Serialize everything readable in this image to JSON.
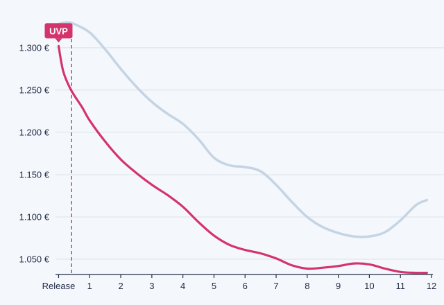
{
  "chart_data": {
    "type": "line",
    "title": "",
    "xlabel": "",
    "ylabel": "",
    "x_ticks": [
      {
        "x": 0,
        "label": "Release"
      },
      {
        "x": 1,
        "label": "1"
      },
      {
        "x": 2,
        "label": "2"
      },
      {
        "x": 3,
        "label": "3"
      },
      {
        "x": 4,
        "label": "4"
      },
      {
        "x": 5,
        "label": "5"
      },
      {
        "x": 6,
        "label": "6"
      },
      {
        "x": 7,
        "label": "7"
      },
      {
        "x": 8,
        "label": "8"
      },
      {
        "x": 9,
        "label": "9"
      },
      {
        "x": 10,
        "label": "10"
      },
      {
        "x": 11,
        "label": "11"
      },
      {
        "x": 12,
        "label": "12"
      }
    ],
    "y_ticks": [
      {
        "y": 1050,
        "label": "1.050 €"
      },
      {
        "y": 1100,
        "label": "1.100 €"
      },
      {
        "y": 1150,
        "label": "1.150 €"
      },
      {
        "y": 1200,
        "label": "1.200 €"
      },
      {
        "y": 1250,
        "label": "1.250 €"
      },
      {
        "y": 1300,
        "label": "1.300 €"
      }
    ],
    "xlim": [
      -0.1,
      12
    ],
    "ylim": [
      1032,
      1340
    ],
    "grid": true,
    "legend": false,
    "series": [
      {
        "color": "#c5d4e4",
        "points": [
          [
            0,
            1328
          ],
          [
            0.25,
            1330
          ],
          [
            0.5,
            1328
          ],
          [
            1,
            1318
          ],
          [
            1.5,
            1298
          ],
          [
            2,
            1275
          ],
          [
            2.5,
            1254
          ],
          [
            3,
            1236
          ],
          [
            3.5,
            1222
          ],
          [
            4,
            1210
          ],
          [
            4.5,
            1192
          ],
          [
            5,
            1170
          ],
          [
            5.5,
            1161
          ],
          [
            6,
            1159
          ],
          [
            6.5,
            1154
          ],
          [
            7,
            1138
          ],
          [
            7.5,
            1118
          ],
          [
            8,
            1100
          ],
          [
            8.5,
            1088
          ],
          [
            9,
            1081
          ],
          [
            9.5,
            1077
          ],
          [
            10,
            1077
          ],
          [
            10.5,
            1082
          ],
          [
            11,
            1096
          ],
          [
            11.5,
            1114
          ],
          [
            11.85,
            1120
          ]
        ]
      },
      {
        "color": "#d4336c",
        "points": [
          [
            0,
            1302
          ],
          [
            0.15,
            1272
          ],
          [
            0.4,
            1250
          ],
          [
            0.75,
            1230
          ],
          [
            1,
            1214
          ],
          [
            1.5,
            1189
          ],
          [
            2,
            1168
          ],
          [
            2.5,
            1152
          ],
          [
            3,
            1138
          ],
          [
            3.5,
            1126
          ],
          [
            4,
            1112
          ],
          [
            4.5,
            1094
          ],
          [
            5,
            1078
          ],
          [
            5.5,
            1067
          ],
          [
            6,
            1061
          ],
          [
            6.5,
            1057
          ],
          [
            7,
            1051
          ],
          [
            7.5,
            1043
          ],
          [
            8,
            1039
          ],
          [
            8.5,
            1040
          ],
          [
            9,
            1042
          ],
          [
            9.5,
            1045
          ],
          [
            10,
            1044
          ],
          [
            10.5,
            1039
          ],
          [
            11,
            1035
          ],
          [
            11.5,
            1034
          ],
          [
            11.85,
            1034
          ]
        ]
      }
    ],
    "reference_line": {
      "x": 0.42,
      "color": "#d4336c",
      "style": "dashed"
    },
    "annotation": {
      "text": "UVP",
      "x": 0,
      "y": 1302,
      "color": "#d4336c"
    }
  }
}
